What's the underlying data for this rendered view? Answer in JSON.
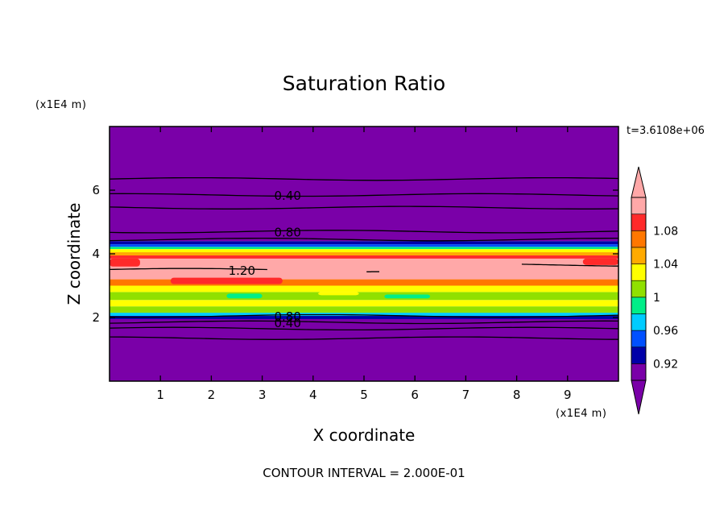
{
  "chart_data": {
    "type": "heatmap",
    "title": "Saturation Ratio",
    "xlabel": "X coordinate",
    "ylabel": "Z coordinate",
    "x_unit_label": "(x1E4 m)",
    "z_unit_label": "(x1E4 m)",
    "time_label": "t=3.6108e+06",
    "footer": "CONTOUR INTERVAL = 2.000E-01",
    "xlim": [
      0,
      10
    ],
    "ylim": [
      0,
      8
    ],
    "x_ticks": [
      1,
      2,
      3,
      4,
      5,
      6,
      7,
      8,
      9
    ],
    "y_ticks": [
      2,
      4,
      6
    ],
    "colorbar": {
      "min": 0.9,
      "max": 1.1,
      "step": 0.02,
      "tick_values": [
        0.92,
        0.96,
        1.0,
        1.04,
        1.08
      ],
      "tick_labels": [
        "0.92",
        "0.96",
        "1",
        "1.04",
        "1.08"
      ],
      "colors": [
        "#7a00a8",
        "#0000a8",
        "#0050ff",
        "#00ccff",
        "#00ee88",
        "#90e000",
        "#ffff00",
        "#ffaa00",
        "#ff7700",
        "#ff2a2a",
        "#ffa8a8"
      ],
      "under_color": "#7a00a8",
      "over_color": "#ffa8a8"
    },
    "bands": [
      {
        "z": [
          0.0,
          1.95
        ],
        "value": 0.4,
        "color": "#7a00a8"
      },
      {
        "z": [
          1.95,
          2.05
        ],
        "value": 0.92,
        "color": "#0000a8"
      },
      {
        "z": [
          2.05,
          2.15
        ],
        "value": 0.97,
        "color": "#00ccff"
      },
      {
        "z": [
          2.15,
          2.35
        ],
        "value": 1.01,
        "color": "#90e000"
      },
      {
        "z": [
          2.35,
          2.55
        ],
        "value": 1.05,
        "color": "#ffff00"
      },
      {
        "z": [
          2.55,
          2.8
        ],
        "value": 1.02,
        "color": "#90e000"
      },
      {
        "z": [
          2.8,
          3.0
        ],
        "value": 1.05,
        "color": "#ffff00"
      },
      {
        "z": [
          3.0,
          3.2
        ],
        "value": 1.07,
        "color": "#ff7700"
      },
      {
        "z": [
          3.2,
          3.85
        ],
        "value": 1.1,
        "color": "#ffa8a8"
      },
      {
        "z": [
          3.85,
          3.95
        ],
        "value": 1.08,
        "color": "#ff2a2a"
      },
      {
        "z": [
          3.95,
          4.05
        ],
        "value": 1.06,
        "color": "#ffaa00"
      },
      {
        "z": [
          4.05,
          4.15
        ],
        "value": 1.04,
        "color": "#ffff00"
      },
      {
        "z": [
          4.15,
          4.22
        ],
        "value": 1.0,
        "color": "#00ee88"
      },
      {
        "z": [
          4.22,
          4.3
        ],
        "value": 0.96,
        "color": "#0050ff"
      },
      {
        "z": [
          4.3,
          4.4
        ],
        "value": 0.92,
        "color": "#0000a8"
      },
      {
        "z": [
          4.4,
          8.0
        ],
        "value": 0.4,
        "color": "#7a00a8"
      }
    ],
    "patches": [
      {
        "x": [
          1.2,
          3.4
        ],
        "z": [
          3.05,
          3.25
        ],
        "color": "#ff2a2a"
      },
      {
        "x": [
          2.3,
          3.0
        ],
        "z": [
          2.6,
          2.75
        ],
        "color": "#00ee88"
      },
      {
        "x": [
          4.1,
          4.9
        ],
        "z": [
          2.7,
          2.8
        ],
        "color": "#ffff00"
      },
      {
        "x": [
          5.4,
          6.3
        ],
        "z": [
          2.6,
          2.72
        ],
        "color": "#00ee88"
      },
      {
        "x": [
          7.3,
          8.4
        ],
        "z": [
          3.45,
          3.6
        ],
        "color": "#ffa8a8"
      },
      {
        "x": [
          0.0,
          0.6
        ],
        "z": [
          3.6,
          3.85
        ],
        "color": "#ff2a2a"
      },
      {
        "x": [
          9.3,
          10.0
        ],
        "z": [
          3.65,
          3.85
        ],
        "color": "#ff2a2a"
      }
    ],
    "contours": [
      {
        "value": 0.4,
        "z": 6.35
      },
      {
        "value": 0.4,
        "z": 5.85,
        "label": "0.40",
        "label_x": 3.5
      },
      {
        "value": 0.4,
        "z": 5.45
      },
      {
        "value": 0.8,
        "z": 4.7,
        "label": "0.80",
        "label_x": 3.5
      },
      {
        "value": 0.8,
        "z": 4.45
      },
      {
        "value": 1.2,
        "z": 3.5,
        "label": "1.20",
        "label_x": 2.6,
        "x_range": [
          0.0,
          3.1
        ]
      },
      {
        "value": 1.2,
        "z": 3.65,
        "x_range": [
          8.1,
          10.0
        ]
      },
      {
        "value": 1.2,
        "z": 3.4,
        "x_range": [
          5.05,
          5.3
        ]
      },
      {
        "value": 0.8,
        "z": 2.05,
        "label": "0.80",
        "label_x": 3.5
      },
      {
        "value": 0.4,
        "z": 1.85,
        "label": "0.40",
        "label_x": 3.5
      },
      {
        "value": 0.4,
        "z": 1.65
      },
      {
        "value": 0.4,
        "z": 1.35
      }
    ]
  }
}
